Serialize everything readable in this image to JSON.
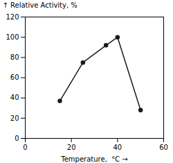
{
  "chart_data": {
    "type": "line",
    "x": [
      15,
      25,
      35,
      40,
      50
    ],
    "values": [
      37,
      75,
      92,
      100,
      28
    ],
    "xlim": [
      0,
      60
    ],
    "ylim": [
      0,
      120
    ],
    "xticks": [
      0,
      20,
      40,
      60
    ],
    "yticks": [
      0,
      20,
      40,
      60,
      80,
      100,
      120
    ],
    "xlabel": "Temperature,  °C",
    "ylabel": "Relative Activity, %",
    "color": "#1a1a1a",
    "marker": "circle",
    "grid": false
  }
}
